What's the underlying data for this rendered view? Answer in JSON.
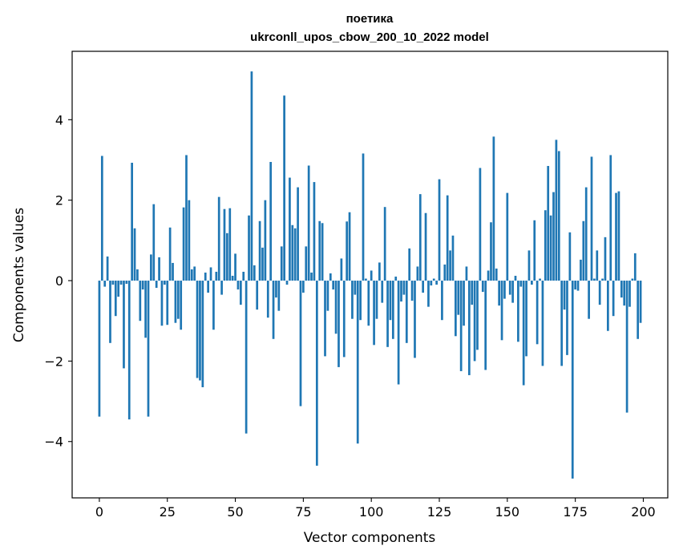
{
  "chart_data": {
    "type": "bar",
    "title_lines": [
      "поетика",
      "ukrconll_upos_cbow_200_10_2022 model"
    ],
    "xlabel": "Vector components",
    "ylabel": "Components values",
    "xlim": [
      -10,
      209
    ],
    "ylim": [
      -5.4,
      5.7
    ],
    "xticks": [
      0,
      25,
      50,
      75,
      100,
      125,
      150,
      175,
      200
    ],
    "yticks": [
      -4,
      -2,
      0,
      2,
      4
    ],
    "ytick_labels": [
      "−4",
      "−2",
      "0",
      "2",
      "4"
    ],
    "grid": false,
    "bar_color": "#1f77b4",
    "x": [
      0,
      1,
      2,
      3,
      4,
      5,
      6,
      7,
      8,
      9,
      10,
      11,
      12,
      13,
      14,
      15,
      16,
      17,
      18,
      19,
      20,
      21,
      22,
      23,
      24,
      25,
      26,
      27,
      28,
      29,
      30,
      31,
      32,
      33,
      34,
      35,
      36,
      37,
      38,
      39,
      40,
      41,
      42,
      43,
      44,
      45,
      46,
      47,
      48,
      49,
      50,
      51,
      52,
      53,
      54,
      55,
      56,
      57,
      58,
      59,
      60,
      61,
      62,
      63,
      64,
      65,
      66,
      67,
      68,
      69,
      70,
      71,
      72,
      73,
      74,
      75,
      76,
      77,
      78,
      79,
      80,
      81,
      82,
      83,
      84,
      85,
      86,
      87,
      88,
      89,
      90,
      91,
      92,
      93,
      94,
      95,
      96,
      97,
      98,
      99,
      100,
      101,
      102,
      103,
      104,
      105,
      106,
      107,
      108,
      109,
      110,
      111,
      112,
      113,
      114,
      115,
      116,
      117,
      118,
      119,
      120,
      121,
      122,
      123,
      124,
      125,
      126,
      127,
      128,
      129,
      130,
      131,
      132,
      133,
      134,
      135,
      136,
      137,
      138,
      139,
      140,
      141,
      142,
      143,
      144,
      145,
      146,
      147,
      148,
      149,
      150,
      151,
      152,
      153,
      154,
      155,
      156,
      157,
      158,
      159,
      160,
      161,
      162,
      163,
      164,
      165,
      166,
      167,
      168,
      169,
      170,
      171,
      172,
      173,
      174,
      175,
      176,
      177,
      178,
      179,
      180,
      181,
      182,
      183,
      184,
      185,
      186,
      187,
      188,
      189,
      190,
      191,
      192,
      193,
      194,
      195,
      196,
      197,
      198,
      199
    ],
    "values": [
      -3.38,
      3.1,
      -0.15,
      0.6,
      -1.55,
      -0.1,
      -0.88,
      -0.4,
      -0.1,
      -2.18,
      -0.08,
      -3.45,
      2.93,
      1.3,
      0.28,
      -1.0,
      -0.22,
      -1.42,
      -3.38,
      0.65,
      1.9,
      -0.18,
      0.58,
      -1.12,
      -0.1,
      -1.1,
      1.32,
      0.44,
      -1.05,
      -0.95,
      -1.22,
      1.82,
      3.12,
      2.0,
      0.28,
      0.35,
      -2.42,
      -2.48,
      -2.65,
      0.2,
      -0.3,
      0.33,
      -1.22,
      0.22,
      2.08,
      -0.35,
      1.78,
      1.18,
      1.8,
      0.12,
      0.67,
      -0.22,
      -0.6,
      0.22,
      -3.8,
      1.62,
      5.2,
      0.38,
      -0.72,
      1.48,
      0.82,
      2.0,
      -0.92,
      2.95,
      -1.45,
      -0.42,
      -0.75,
      0.85,
      4.6,
      -0.1,
      2.56,
      1.38,
      1.3,
      2.32,
      -3.12,
      -0.3,
      0.85,
      2.86,
      0.2,
      2.45,
      -4.6,
      1.48,
      1.43,
      -1.88,
      -0.75,
      0.18,
      -0.22,
      -1.32,
      -2.15,
      0.55,
      -1.9,
      1.47,
      1.7,
      -0.95,
      -0.35,
      -4.05,
      -0.98,
      3.16,
      0.05,
      -1.12,
      0.25,
      -1.6,
      -0.95,
      0.45,
      -0.55,
      1.83,
      -1.65,
      -0.98,
      -1.45,
      0.1,
      -2.58,
      -0.52,
      -0.35,
      -1.55,
      0.8,
      -0.5,
      -1.92,
      0.35,
      2.15,
      -0.3,
      1.68,
      -0.65,
      -0.12,
      0.05,
      -0.1,
      2.52,
      -0.98,
      0.4,
      2.12,
      0.75,
      1.12,
      -1.38,
      -0.85,
      -2.25,
      -1.12,
      0.35,
      -2.35,
      -0.6,
      -2.0,
      -1.72,
      2.8,
      -0.28,
      -2.22,
      0.25,
      1.45,
      3.58,
      0.3,
      -0.62,
      -1.48,
      -0.45,
      2.18,
      -0.35,
      -0.55,
      0.12,
      -1.52,
      -0.15,
      -2.6,
      -1.88,
      0.75,
      -0.1,
      1.5,
      -1.58,
      0.05,
      -2.12,
      1.75,
      2.85,
      1.62,
      2.2,
      3.5,
      3.22,
      -2.12,
      -0.72,
      -1.85,
      1.2,
      -4.92,
      -0.22,
      -0.25,
      0.52,
      1.48,
      2.32,
      -0.95,
      3.08,
      0.05,
      0.75,
      -0.6,
      0.05,
      1.08,
      -1.25,
      3.12,
      -0.88,
      2.18,
      2.22,
      -0.42,
      -0.62,
      -3.28,
      -0.65,
      0.05,
      0.68,
      -1.45,
      -1.05
    ]
  }
}
